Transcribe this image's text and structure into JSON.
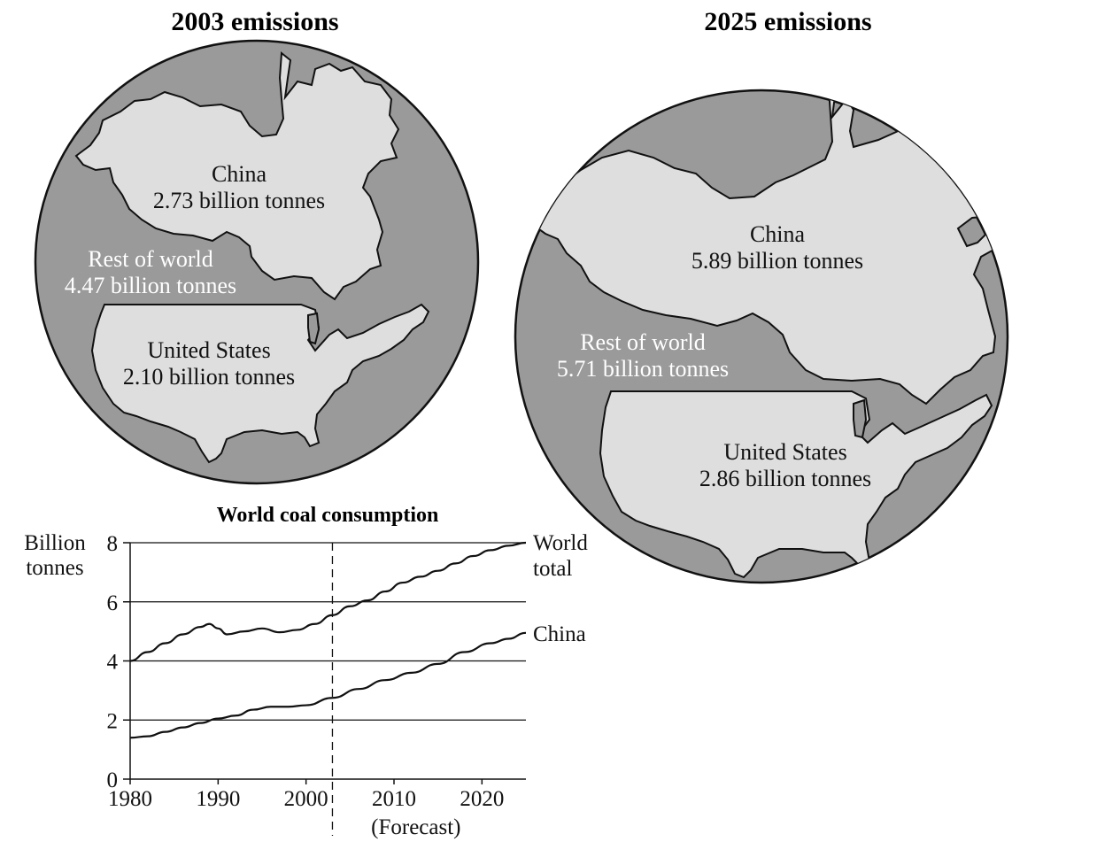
{
  "maps": [
    {
      "title": "2003 emissions",
      "regions": [
        {
          "name": "China",
          "value_text": "2.73 billion tonnes"
        },
        {
          "name": "Rest of world",
          "value_text": "4.47 billion tonnes"
        },
        {
          "name": "United States",
          "value_text": "2.10 billion tonnes"
        }
      ]
    },
    {
      "title": "2025 emissions",
      "regions": [
        {
          "name": "China",
          "value_text": "5.89 billion tonnes"
        },
        {
          "name": "Rest of world",
          "value_text": "5.71 billion tonnes"
        },
        {
          "name": "United States",
          "value_text": "2.86 billion tonnes"
        }
      ]
    }
  ],
  "colors": {
    "circle_fill": "#9a9a9a",
    "country_fill": "#dedede",
    "outline": "#111111"
  },
  "chart_data": {
    "type": "line",
    "title": "World coal consumption",
    "ylabel_lines": [
      "Billion",
      "tonnes"
    ],
    "xlim": [
      1980,
      2025
    ],
    "ylim": [
      0,
      8
    ],
    "xticks": [
      1980,
      1990,
      2000,
      2010,
      2020
    ],
    "yticks": [
      0,
      2,
      4,
      6,
      8
    ],
    "grid": true,
    "forecast_start": 2003,
    "forecast_label": "(Forecast)",
    "series": [
      {
        "name_lines": [
          "World",
          "total"
        ],
        "points": [
          [
            1980,
            4.0
          ],
          [
            1982,
            4.3
          ],
          [
            1984,
            4.6
          ],
          [
            1986,
            4.9
          ],
          [
            1988,
            5.15
          ],
          [
            1989,
            5.25
          ],
          [
            1990,
            5.1
          ],
          [
            1991,
            4.9
          ],
          [
            1993,
            5.0
          ],
          [
            1995,
            5.1
          ],
          [
            1997,
            4.97
          ],
          [
            1999,
            5.05
          ],
          [
            2001,
            5.25
          ],
          [
            2003,
            5.55
          ],
          [
            2005,
            5.85
          ],
          [
            2007,
            6.05
          ],
          [
            2009,
            6.35
          ],
          [
            2011,
            6.65
          ],
          [
            2013,
            6.85
          ],
          [
            2015,
            7.05
          ],
          [
            2017,
            7.3
          ],
          [
            2019,
            7.55
          ],
          [
            2021,
            7.75
          ],
          [
            2023,
            7.9
          ],
          [
            2025,
            8.0
          ]
        ]
      },
      {
        "name_lines": [
          "China"
        ],
        "points": [
          [
            1980,
            1.4
          ],
          [
            1982,
            1.45
          ],
          [
            1984,
            1.6
          ],
          [
            1986,
            1.75
          ],
          [
            1988,
            1.9
          ],
          [
            1990,
            2.05
          ],
          [
            1992,
            2.15
          ],
          [
            1994,
            2.35
          ],
          [
            1996,
            2.45
          ],
          [
            1998,
            2.45
          ],
          [
            2000,
            2.5
          ],
          [
            2003,
            2.75
          ],
          [
            2006,
            3.05
          ],
          [
            2009,
            3.35
          ],
          [
            2012,
            3.6
          ],
          [
            2015,
            3.9
          ],
          [
            2018,
            4.3
          ],
          [
            2021,
            4.6
          ],
          [
            2023,
            4.75
          ],
          [
            2025,
            4.95
          ]
        ]
      }
    ]
  }
}
